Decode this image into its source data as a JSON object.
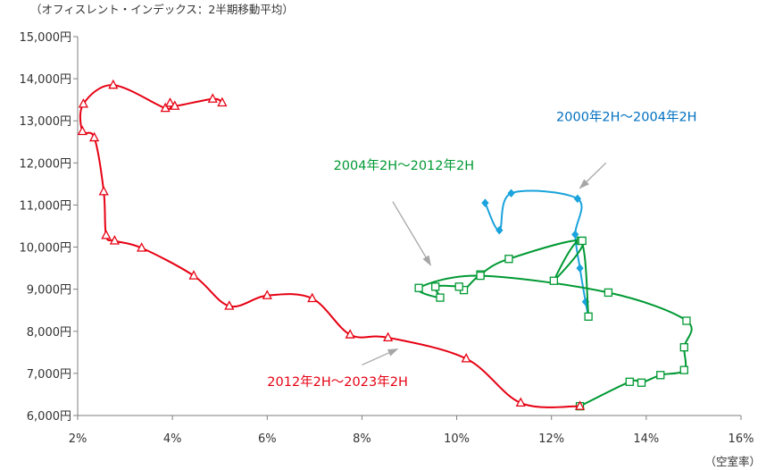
{
  "chart_data": {
    "type": "line",
    "title": "（オフィスレント・インデックス：2半期移動平均）",
    "xlabel": "（空室率）",
    "ylabel": "",
    "xlim": [
      2,
      16
    ],
    "ylim": [
      6000,
      15000
    ],
    "x_ticks": [
      {
        "value": 2,
        "label": "2%"
      },
      {
        "value": 4,
        "label": "4%"
      },
      {
        "value": 6,
        "label": "6%"
      },
      {
        "value": 8,
        "label": "8%"
      },
      {
        "value": 10,
        "label": "10%"
      },
      {
        "value": 12,
        "label": "12%"
      },
      {
        "value": 14,
        "label": "14%"
      },
      {
        "value": 16,
        "label": "16%"
      }
    ],
    "y_ticks": [
      {
        "value": 6000,
        "label": "6,000円"
      },
      {
        "value": 7000,
        "label": "7,000円"
      },
      {
        "value": 8000,
        "label": "8,000円"
      },
      {
        "value": 9000,
        "label": "9,000円"
      },
      {
        "value": 10000,
        "label": "10,000円"
      },
      {
        "value": 11000,
        "label": "11,000円"
      },
      {
        "value": 12000,
        "label": "12,000円"
      },
      {
        "value": 13000,
        "label": "13,000円"
      },
      {
        "value": 14000,
        "label": "14,000円"
      },
      {
        "value": 15000,
        "label": "15,000円"
      }
    ],
    "grid": false,
    "series": [
      {
        "name": "2000年2H～2004年2H",
        "color": "#1aa3dc",
        "label_color": "#0070c0",
        "marker": "diamond",
        "points": [
          [
            10.6,
            11050
          ],
          [
            10.9,
            10400
          ],
          [
            11.15,
            11280
          ],
          [
            12.55,
            11150
          ],
          [
            12.5,
            10300
          ],
          [
            12.6,
            9500
          ],
          [
            12.72,
            8700
          ],
          [
            12.78,
            8350
          ]
        ]
      },
      {
        "name": "2004年2H～2012年2H",
        "color": "#009933",
        "label_color": "#009933",
        "marker": "square",
        "points": [
          [
            12.78,
            8350
          ],
          [
            12.62,
            10150
          ],
          [
            12.05,
            9200
          ],
          [
            12.65,
            10150
          ],
          [
            11.1,
            9720
          ],
          [
            10.5,
            9350
          ],
          [
            10.15,
            8980
          ],
          [
            10.05,
            9060
          ],
          [
            9.55,
            9060
          ],
          [
            9.65,
            8800
          ],
          [
            9.2,
            9030
          ],
          [
            10.5,
            9320
          ],
          [
            13.2,
            8920
          ],
          [
            14.85,
            8250
          ],
          [
            14.8,
            7620
          ],
          [
            14.8,
            7080
          ],
          [
            14.3,
            6960
          ],
          [
            13.9,
            6780
          ],
          [
            13.65,
            6800
          ],
          [
            12.6,
            6220
          ]
        ]
      },
      {
        "name": "2012年2H～2023年2H",
        "color": "#e60012",
        "label_color": "#e60012",
        "marker": "triangle",
        "points": [
          [
            12.6,
            6220
          ],
          [
            11.35,
            6300
          ],
          [
            10.2,
            7350
          ],
          [
            8.55,
            7850
          ],
          [
            7.75,
            7920
          ],
          [
            6.95,
            8780
          ],
          [
            6.0,
            8850
          ],
          [
            5.2,
            8600
          ],
          [
            4.45,
            9320
          ],
          [
            3.35,
            9980
          ],
          [
            2.78,
            10150
          ],
          [
            2.6,
            10280
          ],
          [
            2.55,
            11320
          ],
          [
            2.35,
            12600
          ],
          [
            2.1,
            12750
          ],
          [
            2.12,
            13400
          ],
          [
            2.75,
            13850
          ],
          [
            3.85,
            13300
          ],
          [
            3.95,
            13420
          ],
          [
            4.05,
            13350
          ],
          [
            4.85,
            13520
          ],
          [
            5.05,
            13430
          ]
        ]
      }
    ],
    "annotations": [
      {
        "series": 0,
        "text": "2000年2H～2004年2H",
        "label_x": 12.1,
        "label_y": 12990,
        "arrow_from": [
          13.15,
          12000
        ],
        "arrow_to": [
          12.6,
          11400
        ]
      },
      {
        "series": 1,
        "text": "2004年2H～2012年2H",
        "label_x": 7.4,
        "label_y": 11840,
        "arrow_from": [
          8.65,
          11080
        ],
        "arrow_to": [
          9.45,
          9570
        ]
      },
      {
        "series": 2,
        "text": "2012年2H～2023年2H",
        "label_x": 6.0,
        "label_y": 6700,
        "arrow_from": [
          8.0,
          7200
        ],
        "arrow_to": [
          8.75,
          7580
        ]
      }
    ]
  }
}
